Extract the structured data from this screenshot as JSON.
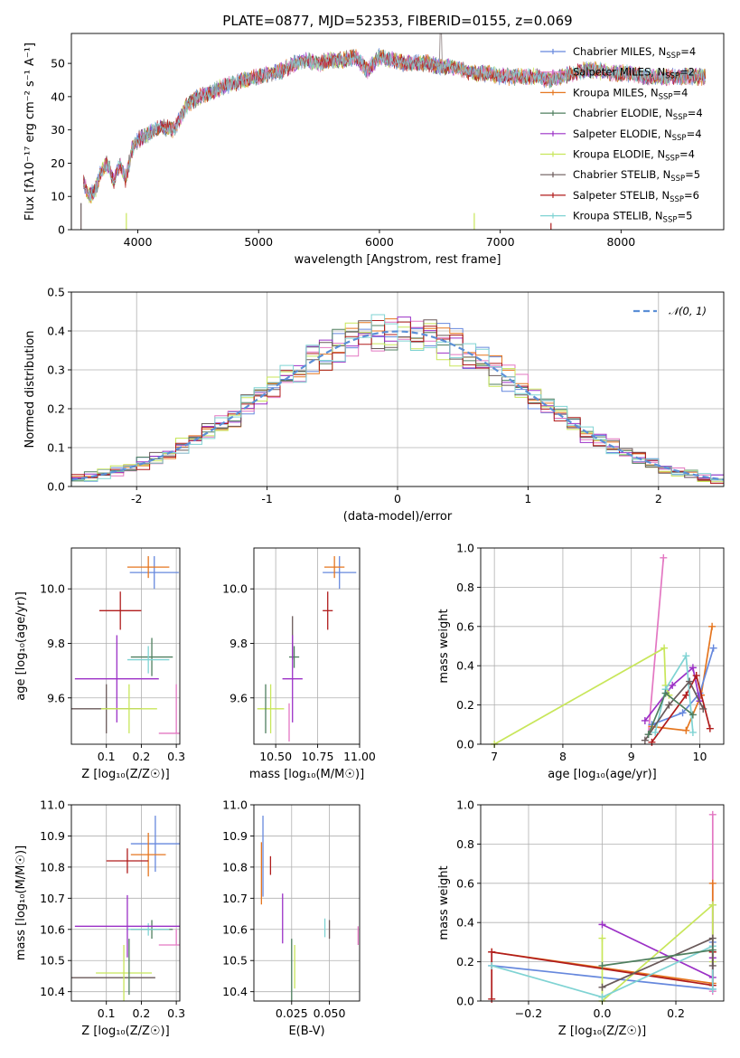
{
  "figure": {
    "title": "PLATE=0877, MJD=52353, FIBERID=0155, z=0.069"
  },
  "models": [
    {
      "name": "Chabrier MILES",
      "n_ssp": "4",
      "color": "#6688dd"
    },
    {
      "name": "Salpeter MILES",
      "n_ssp": "2",
      "color": "#e377c2"
    },
    {
      "name": "Kroupa MILES",
      "n_ssp": "4",
      "color": "#e5761f"
    },
    {
      "name": "Chabrier ELODIE",
      "n_ssp": "4",
      "color": "#4f7f5f"
    },
    {
      "name": "Salpeter ELODIE",
      "n_ssp": "4",
      "color": "#9b30c6"
    },
    {
      "name": "Kroupa ELODIE",
      "n_ssp": "4",
      "color": "#c8e65a"
    },
    {
      "name": "Chabrier STELIB",
      "n_ssp": "5",
      "color": "#6a5a5a"
    },
    {
      "name": "Salpeter STELIB",
      "n_ssp": "6",
      "color": "#b01c1c"
    },
    {
      "name": "Kroupa STELIB",
      "n_ssp": "5",
      "color": "#7fd3d3"
    }
  ],
  "chart_data": [
    {
      "id": "spectrum",
      "type": "line",
      "xlabel": "wavelength [Angstrom, rest frame]",
      "ylabel": "Flux [fλ10⁻¹⁷ erg cm⁻² s⁻¹ A⁻¹]",
      "xlim": [
        3450,
        8850
      ],
      "ylim": [
        0,
        59
      ],
      "xticks": [
        4000,
        5000,
        6000,
        7000,
        8000
      ],
      "yticks": [
        0,
        10,
        20,
        30,
        40,
        50
      ],
      "grid": false,
      "legend_position": "top-right",
      "series_note": "nine overlapping model spectra",
      "x": [
        3550,
        3600,
        3650,
        3700,
        3750,
        3800,
        3850,
        3900,
        3950,
        4000,
        4100,
        4200,
        4300,
        4400,
        4500,
        4600,
        4700,
        4800,
        4900,
        5000,
        5100,
        5200,
        5300,
        5400,
        5500,
        5600,
        5700,
        5800,
        5900,
        6000,
        6100,
        6200,
        6300,
        6400,
        6500,
        6600,
        6700,
        6800,
        6900,
        7000,
        7100,
        7200,
        7300,
        7400,
        7500,
        7600,
        7700,
        7800,
        7900,
        8000,
        8100,
        8200,
        8300,
        8400,
        8500,
        8600,
        8700
      ],
      "y": [
        14,
        10,
        12,
        18,
        20,
        14,
        20,
        15,
        24,
        27,
        29,
        31,
        30,
        37,
        40,
        41,
        43,
        44,
        45,
        46,
        47,
        48,
        50,
        51,
        50,
        51,
        51,
        52,
        48,
        52,
        51,
        50,
        50,
        50,
        49,
        49,
        48,
        47,
        47,
        46,
        46,
        46,
        46,
        45,
        46,
        47,
        48,
        48,
        47,
        47,
        47,
        46,
        46,
        46,
        46,
        46,
        46
      ]
    },
    {
      "id": "residuals",
      "type": "bar",
      "xlabel": "(data-model)/error",
      "ylabel": "Normed distribution",
      "xlim": [
        -2.5,
        2.5
      ],
      "ylim": [
        0,
        0.5
      ],
      "xticks": [
        -2,
        -1,
        0,
        1,
        2
      ],
      "yticks": [
        0.0,
        0.1,
        0.2,
        0.3,
        0.4,
        0.5
      ],
      "grid": true,
      "legend_position": "top-right",
      "reference_label": "𝒩(0, 1)",
      "bin_edges": [
        -2.5,
        -2.4,
        -2.3,
        -2.2,
        -2.1,
        -2.0,
        -1.9,
        -1.8,
        -1.7,
        -1.6,
        -1.5,
        -1.4,
        -1.3,
        -1.2,
        -1.1,
        -1.0,
        -0.9,
        -0.8,
        -0.7,
        -0.6,
        -0.5,
        -0.4,
        -0.3,
        -0.2,
        -0.1,
        0.0,
        0.1,
        0.2,
        0.3,
        0.4,
        0.5,
        0.6,
        0.7,
        0.8,
        0.9,
        1.0,
        1.1,
        1.2,
        1.3,
        1.4,
        1.5,
        1.6,
        1.7,
        1.8,
        1.9,
        2.0,
        2.1,
        2.2,
        2.3,
        2.4,
        2.5
      ]
    },
    {
      "id": "age_Z",
      "type": "scatter",
      "xlabel": "Z [log₁₀(Z/Z☉)]",
      "ylabel": "age  [log₁₀(age/yr)]",
      "xlim": [
        0.0,
        0.31
      ],
      "ylim": [
        9.43,
        10.15
      ],
      "xticks": [
        0.1,
        0.2,
        0.3
      ],
      "yticks": [
        9.6,
        9.8,
        10.0
      ],
      "grid": true,
      "points": [
        {
          "model": 0,
          "x": 0.237,
          "y": 10.06,
          "xerr": [
            0.07,
            0.07
          ],
          "yerr": [
            0.06,
            0.06
          ]
        },
        {
          "model": 2,
          "x": 0.22,
          "y": 10.08,
          "xerr": [
            0.06,
            0.06
          ],
          "yerr": [
            0.04,
            0.04
          ]
        },
        {
          "model": 7,
          "x": 0.14,
          "y": 9.92,
          "xerr": [
            0.06,
            0.06
          ],
          "yerr": [
            0.07,
            0.07
          ]
        },
        {
          "model": 3,
          "x": 0.23,
          "y": 9.75,
          "xerr": [
            0.06,
            0.06
          ],
          "yerr": [
            0.07,
            0.07
          ]
        },
        {
          "model": 8,
          "x": 0.22,
          "y": 9.74,
          "xerr": [
            0.06,
            0.06
          ],
          "yerr": [
            0.05,
            0.05
          ]
        },
        {
          "model": 4,
          "x": 0.13,
          "y": 9.67,
          "xerr": [
            0.12,
            0.12
          ],
          "yerr": [
            0.16,
            0.16
          ]
        },
        {
          "model": 6,
          "x": 0.1,
          "y": 9.56,
          "xerr": [
            0.1,
            0.1
          ],
          "yerr": [
            0.09,
            0.09
          ]
        },
        {
          "model": 5,
          "x": 0.165,
          "y": 9.56,
          "xerr": [
            0.08,
            0.08
          ],
          "yerr": [
            0.09,
            0.09
          ]
        },
        {
          "model": 1,
          "x": 0.3,
          "y": 9.47,
          "xerr": [
            0.05,
            0.01
          ],
          "yerr": [
            0.0,
            0.18
          ]
        }
      ]
    },
    {
      "id": "age_mass",
      "type": "scatter",
      "xlabel": "mass [log₁₀(M/M☉)]",
      "ylabel": "",
      "xlim": [
        10.37,
        11.0
      ],
      "ylim": [
        9.43,
        10.15
      ],
      "xticks": [
        10.5,
        10.75,
        11.0
      ],
      "xticklabels": [
        "10.50",
        "10.75",
        "11.00"
      ],
      "yticks": [
        9.6,
        9.8,
        10.0
      ],
      "grid": true,
      "points": [
        {
          "model": 0,
          "x": 10.88,
          "y": 10.06,
          "xerr": [
            0.1,
            0.1
          ],
          "yerr": [
            0.06,
            0.06
          ]
        },
        {
          "model": 2,
          "x": 10.85,
          "y": 10.08,
          "xerr": [
            0.06,
            0.06
          ],
          "yerr": [
            0.04,
            0.04
          ]
        },
        {
          "model": 7,
          "x": 10.81,
          "y": 9.92,
          "xerr": [
            0.03,
            0.03
          ],
          "yerr": [
            0.07,
            0.07
          ]
        },
        {
          "model": 3,
          "x": 10.61,
          "y": 9.75,
          "xerr": [
            0.03,
            0.03
          ],
          "yerr": [
            0.04,
            0.04
          ]
        },
        {
          "model": 6,
          "x": 10.6,
          "y": 9.82,
          "xerr": [
            0.0,
            0.0
          ],
          "yerr": [
            0.08,
            0.08
          ]
        },
        {
          "model": 4,
          "x": 10.6,
          "y": 9.67,
          "xerr": [
            0.06,
            0.06
          ],
          "yerr": [
            0.16,
            0.16
          ]
        },
        {
          "model": 5,
          "x": 10.47,
          "y": 9.56,
          "xerr": [
            0.08,
            0.08
          ],
          "yerr": [
            0.09,
            0.09
          ]
        },
        {
          "model": 3,
          "x": 10.44,
          "y": 9.56,
          "xerr": [
            0.0,
            0.0
          ],
          "yerr": [
            0.09,
            0.09
          ]
        },
        {
          "model": 1,
          "x": 10.58,
          "y": 9.51,
          "xerr": [
            0.0,
            0.0
          ],
          "yerr": [
            0.07,
            0.07
          ]
        }
      ]
    },
    {
      "id": "mw_age",
      "type": "line",
      "xlabel": "age  [log₁₀(age/yr)]",
      "ylabel": "mass weight",
      "xlim": [
        6.8,
        10.35
      ],
      "ylim": [
        0,
        1.0
      ],
      "xticks": [
        7,
        8,
        9,
        10
      ],
      "yticks": [
        0.0,
        0.2,
        0.4,
        0.6,
        0.8,
        1.0
      ],
      "grid": true,
      "series": [
        {
          "model": 1,
          "x": [
            9.25,
            9.47
          ],
          "y": [
            0.05,
            0.95
          ]
        },
        {
          "model": 2,
          "x": [
            9.3,
            9.8,
            10.02,
            10.18
          ],
          "y": [
            0.09,
            0.07,
            0.25,
            0.6
          ]
        },
        {
          "model": 0,
          "x": [
            9.3,
            9.75,
            10.0,
            10.2
          ],
          "y": [
            0.1,
            0.16,
            0.26,
            0.49
          ]
        },
        {
          "model": 4,
          "x": [
            9.2,
            9.6,
            9.9,
            10.0
          ],
          "y": [
            0.12,
            0.3,
            0.39,
            0.22
          ]
        },
        {
          "model": 5,
          "x": [
            7.0,
            9.48,
            9.5,
            9.55
          ],
          "y": [
            0.0,
            0.49,
            0.3,
            0.25
          ]
        },
        {
          "model": 7,
          "x": [
            9.3,
            9.8,
            9.95,
            10.15
          ],
          "y": [
            0.01,
            0.25,
            0.35,
            0.08
          ]
        },
        {
          "model": 8,
          "x": [
            9.35,
            9.5,
            9.8,
            9.9
          ],
          "y": [
            0.06,
            0.28,
            0.45,
            0.06
          ]
        },
        {
          "model": 6,
          "x": [
            9.2,
            9.55,
            9.85,
            10.05
          ],
          "y": [
            0.02,
            0.2,
            0.32,
            0.18
          ]
        },
        {
          "model": 3,
          "x": [
            9.25,
            9.5,
            9.9
          ],
          "y": [
            0.05,
            0.26,
            0.15
          ]
        }
      ]
    },
    {
      "id": "mass_Z",
      "type": "scatter",
      "xlabel": "Z [log₁₀(Z/Z☉)]",
      "ylabel": "mass [log₁₀(M/M☉)]",
      "xlim": [
        0.0,
        0.31
      ],
      "ylim": [
        10.37,
        11.0
      ],
      "xticks": [
        0.1,
        0.2,
        0.3
      ],
      "yticks": [
        10.4,
        10.5,
        10.6,
        10.7,
        10.8,
        10.9,
        11.0
      ],
      "grid": true,
      "points": [
        {
          "model": 0,
          "x": 0.24,
          "y": 10.875,
          "xerr": [
            0.07,
            0.07
          ],
          "yerr": [
            0.09,
            0.09
          ]
        },
        {
          "model": 2,
          "x": 0.22,
          "y": 10.84,
          "xerr": [
            0.05,
            0.05
          ],
          "yerr": [
            0.07,
            0.07
          ]
        },
        {
          "model": 7,
          "x": 0.16,
          "y": 10.82,
          "xerr": [
            0.06,
            0.06
          ],
          "yerr": [
            0.04,
            0.04
          ]
        },
        {
          "model": 3,
          "x": 0.23,
          "y": 10.6,
          "xerr": [
            0.06,
            0.06
          ],
          "yerr": [
            0.03,
            0.03
          ]
        },
        {
          "model": 8,
          "x": 0.22,
          "y": 10.6,
          "xerr": [
            0.06,
            0.06
          ],
          "yerr": [
            0.02,
            0.02
          ]
        },
        {
          "model": 4,
          "x": 0.16,
          "y": 10.61,
          "xerr": [
            0.15,
            0.15
          ],
          "yerr": [
            0.1,
            0.1
          ]
        },
        {
          "model": 1,
          "x": 0.3,
          "y": 10.55,
          "xerr": [
            0.05,
            0.01
          ],
          "yerr": [
            0.0,
            0.05
          ]
        },
        {
          "model": 6,
          "x": 0.12,
          "y": 10.445,
          "xerr": [
            0.12,
            0.12
          ],
          "yerr": [
            0.0,
            0.0
          ]
        },
        {
          "model": 5,
          "x": 0.15,
          "y": 10.46,
          "xerr": [
            0.08,
            0.08
          ],
          "yerr": [
            0.09,
            0.09
          ]
        },
        {
          "model": 3,
          "x": 0.165,
          "y": 10.48,
          "xerr": [
            0.0,
            0.0
          ],
          "yerr": [
            0.09,
            0.09
          ]
        }
      ]
    },
    {
      "id": "mass_ebv",
      "type": "scatter",
      "xlabel": "E(B-V)",
      "ylabel": "",
      "xlim": [
        0.0,
        0.07
      ],
      "ylim": [
        10.37,
        11.0
      ],
      "xticks": [
        0.025,
        0.05
      ],
      "xticklabels": [
        "0.025",
        "0.050"
      ],
      "yticks": [
        10.4,
        10.5,
        10.6,
        10.7,
        10.8,
        10.9,
        11.0
      ],
      "grid": true,
      "points": [
        {
          "model": 0,
          "x": 0.006,
          "y": 10.835,
          "xerr": [
            0.0,
            0.0
          ],
          "yerr": [
            0.13,
            0.13
          ]
        },
        {
          "model": 2,
          "x": 0.005,
          "y": 10.78,
          "xerr": [
            0.0,
            0.0
          ],
          "yerr": [
            0.1,
            0.1
          ]
        },
        {
          "model": 7,
          "x": 0.011,
          "y": 10.805,
          "xerr": [
            0.0,
            0.0
          ],
          "yerr": [
            0.03,
            0.03
          ]
        },
        {
          "model": 4,
          "x": 0.019,
          "y": 10.635,
          "xerr": [
            0.0,
            0.0
          ],
          "yerr": [
            0.08,
            0.08
          ]
        },
        {
          "model": 3,
          "x": 0.025,
          "y": 10.47,
          "xerr": [
            0.0,
            0.0
          ],
          "yerr": [
            0.1,
            0.1
          ]
        },
        {
          "model": 5,
          "x": 0.027,
          "y": 10.48,
          "xerr": [
            0.0,
            0.0
          ],
          "yerr": [
            0.07,
            0.07
          ]
        },
        {
          "model": 8,
          "x": 0.047,
          "y": 10.605,
          "xerr": [
            0.0,
            0.0
          ],
          "yerr": [
            0.03,
            0.03
          ]
        },
        {
          "model": 6,
          "x": 0.05,
          "y": 10.6,
          "xerr": [
            0.0,
            0.0
          ],
          "yerr": [
            0.03,
            0.03
          ]
        },
        {
          "model": 1,
          "x": 0.069,
          "y": 10.58,
          "xerr": [
            0.0,
            0.0
          ],
          "yerr": [
            0.03,
            0.03
          ]
        }
      ]
    },
    {
      "id": "mw_Z",
      "type": "line",
      "xlabel": "Z [log₁₀(Z/Z☉)]",
      "ylabel": "mass weight",
      "xlim": [
        -0.33,
        0.33
      ],
      "ylim": [
        0,
        1.0
      ],
      "xticks": [
        -0.2,
        0.0,
        0.2
      ],
      "xticklabels": [
        "−0.2",
        "0.0",
        "0.2"
      ],
      "yticks": [
        0.0,
        0.2,
        0.4,
        0.6,
        0.8,
        1.0
      ],
      "grid": true,
      "series": [
        {
          "model": 1,
          "x": [
            0.3,
            0.3
          ],
          "y": [
            0.05,
            0.95
          ]
        },
        {
          "model": 2,
          "x": [
            -0.3,
            0.3,
            0.3,
            0.3
          ],
          "y": [
            0.25,
            0.09,
            0.6,
            0.25
          ]
        },
        {
          "model": 0,
          "x": [
            -0.3,
            0.3,
            0.3,
            0.3
          ],
          "y": [
            0.18,
            0.06,
            0.3,
            0.49
          ]
        },
        {
          "model": 4,
          "x": [
            0.0,
            0.3,
            0.3
          ],
          "y": [
            0.39,
            0.12,
            0.22
          ]
        },
        {
          "model": 5,
          "x": [
            0.0,
            0.0,
            0.3,
            0.3
          ],
          "y": [
            0.32,
            0.0,
            0.49,
            0.2
          ]
        },
        {
          "model": 7,
          "x": [
            -0.3,
            -0.3,
            0.3,
            0.3
          ],
          "y": [
            0.01,
            0.25,
            0.08,
            0.25
          ]
        },
        {
          "model": 8,
          "x": [
            -0.3,
            0.0,
            0.3,
            0.3
          ],
          "y": [
            0.18,
            0.02,
            0.28,
            0.06
          ]
        },
        {
          "model": 6,
          "x": [
            0.0,
            0.3,
            0.3
          ],
          "y": [
            0.07,
            0.32,
            0.18
          ]
        },
        {
          "model": 3,
          "x": [
            0.0,
            0.3
          ],
          "y": [
            0.18,
            0.26
          ]
        }
      ]
    }
  ]
}
